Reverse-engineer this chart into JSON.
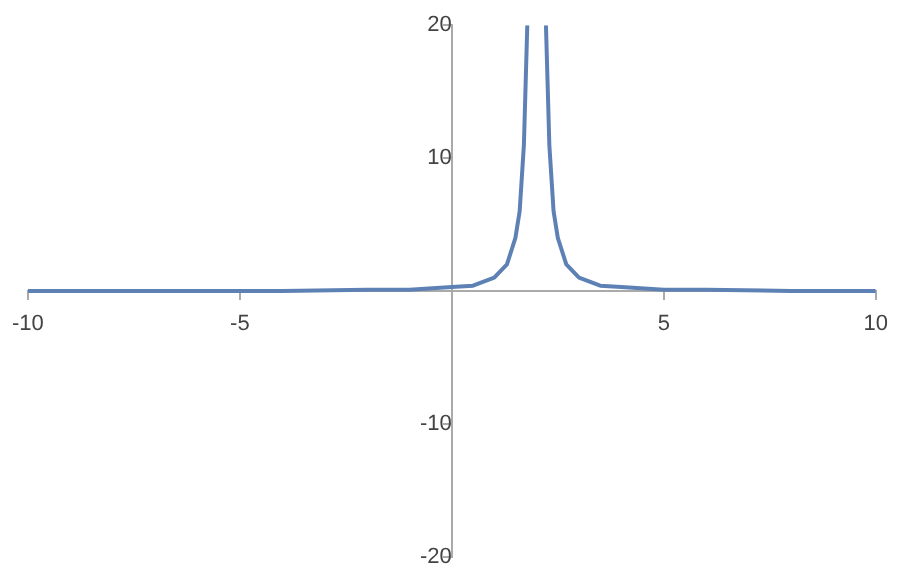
{
  "chart_data": {
    "type": "line",
    "x": [
      -10,
      -8,
      -6,
      -4,
      -2,
      -1,
      0,
      0.5,
      1,
      1.3,
      1.5,
      1.6,
      1.7,
      1.78,
      2,
      2.22,
      2.3,
      2.4,
      2.5,
      2.7,
      3,
      3.5,
      4,
      5,
      6,
      8,
      10
    ],
    "series": [
      {
        "color": "#5e81b5",
        "values": [
          0,
          0,
          0,
          0,
          0.1,
          0.1,
          0.3,
          0.4,
          1,
          2,
          4,
          6,
          11,
          20,
          null,
          20,
          11,
          6,
          4,
          2,
          1,
          0.4,
          0.3,
          0.1,
          0.1,
          0,
          0
        ]
      }
    ],
    "xlim": [
      -10,
      10
    ],
    "ylim": [
      -20,
      20
    ],
    "xticks": [
      -10,
      -5,
      5,
      10
    ],
    "yticks": [
      -20,
      -10,
      10,
      20
    ],
    "grid": false,
    "legend": false,
    "marker": "none",
    "line_style": "solid"
  }
}
